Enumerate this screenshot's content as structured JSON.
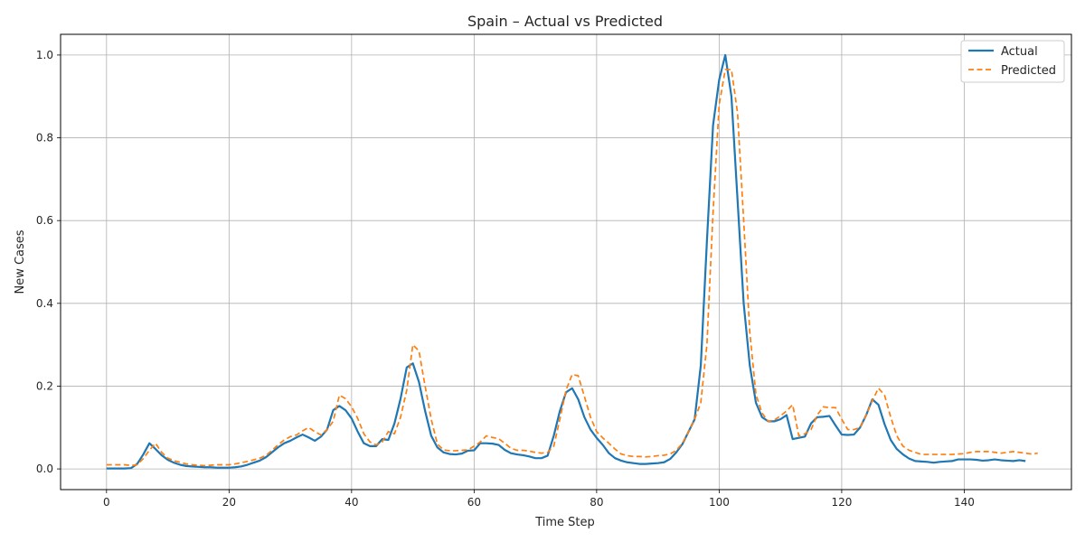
{
  "colors": {
    "actual": "#1f77b4",
    "predicted": "#ff7f0e",
    "grid": "#b0b0b0",
    "axis": "#000000"
  },
  "chart_data": {
    "type": "line",
    "title": "Spain – Actual vs Predicted",
    "xlabel": "Time Step",
    "ylabel": "New Cases",
    "xlim": [
      -7.5,
      157.5
    ],
    "ylim": [
      -0.05,
      1.05
    ],
    "xticks": [
      0,
      20,
      40,
      60,
      80,
      100,
      120,
      140
    ],
    "yticks": [
      0.0,
      0.2,
      0.4,
      0.6,
      0.8,
      1.0
    ],
    "xtick_labels": [
      "0",
      "20",
      "40",
      "60",
      "80",
      "100",
      "120",
      "140"
    ],
    "ytick_labels": [
      "0.0",
      "0.2",
      "0.4",
      "0.6",
      "0.8",
      "1.0"
    ],
    "grid": true,
    "legend": "top-right",
    "series": [
      {
        "name": "Actual",
        "style": "solid",
        "values": [
          0.001,
          0.001,
          0.001,
          0.001,
          0.002,
          0.012,
          0.035,
          0.062,
          0.048,
          0.033,
          0.022,
          0.015,
          0.01,
          0.007,
          0.006,
          0.005,
          0.004,
          0.004,
          0.003,
          0.003,
          0.003,
          0.004,
          0.006,
          0.01,
          0.015,
          0.02,
          0.028,
          0.04,
          0.052,
          0.062,
          0.068,
          0.076,
          0.083,
          0.076,
          0.068,
          0.078,
          0.095,
          0.142,
          0.152,
          0.142,
          0.122,
          0.09,
          0.062,
          0.055,
          0.055,
          0.072,
          0.07,
          0.11,
          0.17,
          0.245,
          0.255,
          0.21,
          0.14,
          0.08,
          0.052,
          0.04,
          0.036,
          0.035,
          0.037,
          0.044,
          0.045,
          0.062,
          0.062,
          0.061,
          0.058,
          0.046,
          0.038,
          0.035,
          0.033,
          0.03,
          0.026,
          0.026,
          0.032,
          0.08,
          0.14,
          0.185,
          0.195,
          0.168,
          0.125,
          0.095,
          0.075,
          0.058,
          0.038,
          0.026,
          0.02,
          0.016,
          0.014,
          0.012,
          0.012,
          0.013,
          0.014,
          0.016,
          0.024,
          0.04,
          0.06,
          0.09,
          0.12,
          0.25,
          0.55,
          0.83,
          0.94,
          1.0,
          0.9,
          0.65,
          0.4,
          0.25,
          0.16,
          0.125,
          0.115,
          0.115,
          0.12,
          0.13,
          0.072,
          0.075,
          0.078,
          0.11,
          0.125,
          0.126,
          0.128,
          0.105,
          0.083,
          0.082,
          0.083,
          0.1,
          0.13,
          0.168,
          0.155,
          0.108,
          0.07,
          0.048,
          0.035,
          0.025,
          0.019,
          0.018,
          0.017,
          0.015,
          0.017,
          0.018,
          0.019,
          0.023,
          0.023,
          0.023,
          0.022,
          0.02,
          0.021,
          0.023,
          0.021,
          0.02,
          0.019,
          0.021,
          0.019
        ]
      },
      {
        "name": "Predicted",
        "style": "dashed",
        "values": [
          0.01,
          0.01,
          0.01,
          0.01,
          0.008,
          0.01,
          0.025,
          0.045,
          0.062,
          0.04,
          0.026,
          0.02,
          0.016,
          0.012,
          0.01,
          0.009,
          0.008,
          0.009,
          0.01,
          0.01,
          0.01,
          0.012,
          0.015,
          0.018,
          0.022,
          0.026,
          0.032,
          0.045,
          0.058,
          0.07,
          0.078,
          0.082,
          0.092,
          0.1,
          0.09,
          0.082,
          0.095,
          0.115,
          0.178,
          0.17,
          0.15,
          0.122,
          0.085,
          0.065,
          0.058,
          0.065,
          0.09,
          0.085,
          0.125,
          0.19,
          0.3,
          0.285,
          0.2,
          0.12,
          0.06,
          0.046,
          0.044,
          0.044,
          0.045,
          0.046,
          0.055,
          0.065,
          0.08,
          0.076,
          0.073,
          0.062,
          0.05,
          0.045,
          0.045,
          0.043,
          0.04,
          0.038,
          0.04,
          0.055,
          0.12,
          0.19,
          0.228,
          0.225,
          0.175,
          0.125,
          0.09,
          0.075,
          0.062,
          0.048,
          0.036,
          0.032,
          0.03,
          0.03,
          0.029,
          0.03,
          0.032,
          0.033,
          0.036,
          0.045,
          0.062,
          0.09,
          0.12,
          0.16,
          0.3,
          0.62,
          0.88,
          0.965,
          0.965,
          0.86,
          0.6,
          0.33,
          0.18,
          0.135,
          0.115,
          0.118,
          0.128,
          0.14,
          0.155,
          0.08,
          0.085,
          0.095,
          0.13,
          0.15,
          0.148,
          0.148,
          0.12,
          0.095,
          0.095,
          0.1,
          0.13,
          0.165,
          0.195,
          0.178,
          0.125,
          0.08,
          0.055,
          0.045,
          0.04,
          0.035,
          0.035,
          0.035,
          0.035,
          0.035,
          0.035,
          0.036,
          0.037,
          0.04,
          0.042,
          0.042,
          0.042,
          0.04,
          0.038,
          0.04,
          0.042,
          0.04,
          0.038,
          0.036,
          0.038
        ]
      }
    ]
  }
}
